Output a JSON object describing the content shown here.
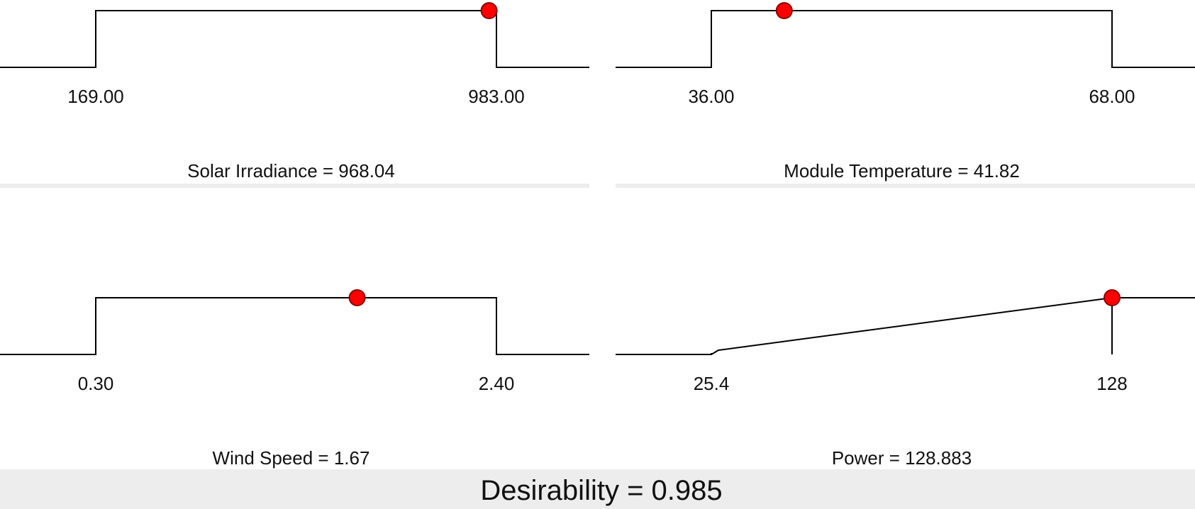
{
  "colors": {
    "curve": "#000000",
    "marker": "#ff0000",
    "marker_stroke": "#8b0000",
    "separator": "#ededed"
  },
  "desirability": {
    "label": "Desirability = 0.985"
  },
  "chart_data": [
    {
      "type": "line",
      "title": "Solar Irradiance = 968.04",
      "curve": "step",
      "low": 169.0,
      "high": 983.0,
      "tick_labels": [
        "169.00",
        "983.00"
      ],
      "current": 968.04,
      "current_desirability": 1
    },
    {
      "type": "line",
      "title": "Module Temperature = 41.82",
      "curve": "step",
      "low": 36.0,
      "high": 68.0,
      "tick_labels": [
        "36.00",
        "68.00"
      ],
      "current": 41.82,
      "current_desirability": 1
    },
    {
      "type": "line",
      "title": "Wind Speed = 1.67",
      "curve": "step",
      "low": 0.3,
      "high": 2.4,
      "tick_labels": [
        "0.30",
        "2.40"
      ],
      "current": 1.67,
      "current_desirability": 1
    },
    {
      "type": "line",
      "title": "Power = 128.883",
      "curve": "ramp",
      "low": 25.4,
      "high": 128,
      "tick_labels": [
        "25.4",
        "128"
      ],
      "current": 128.883,
      "current_desirability": 1
    }
  ]
}
